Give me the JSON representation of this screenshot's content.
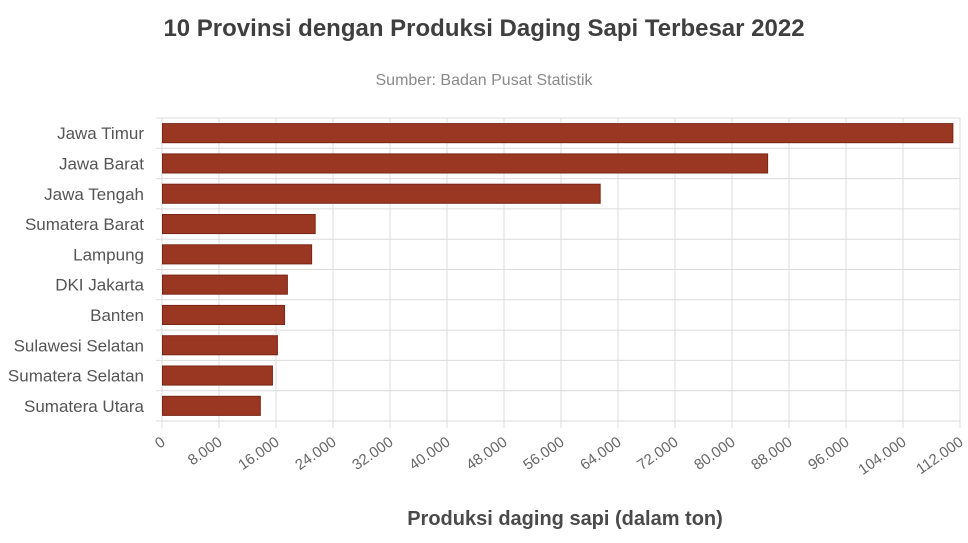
{
  "chart_data": {
    "type": "bar",
    "orientation": "horizontal",
    "title": "10 Provinsi dengan Produksi Daging Sapi Terbesar 2022",
    "subtitle": "Sumber: Badan Pusat Statistik",
    "xlabel": "Produksi daging sapi (dalam ton)",
    "ylabel": "",
    "categories": [
      "Jawa Timur",
      "Jawa Barat",
      "Jawa Tengah",
      "Sumatera Barat",
      "Lampung",
      "DKI Jakarta",
      "Banten",
      "Sulawesi Selatan",
      "Sumatera Selatan",
      "Sumatera Utara"
    ],
    "values": [
      111000,
      85000,
      61500,
      21500,
      21000,
      17600,
      17200,
      16200,
      15500,
      13800
    ],
    "xlim": [
      0,
      112000
    ],
    "xticks": [
      0,
      8000,
      16000,
      24000,
      32000,
      40000,
      48000,
      56000,
      64000,
      72000,
      80000,
      88000,
      96000,
      104000,
      112000
    ],
    "xtick_labels": [
      "0",
      "8.000",
      "16.000",
      "24.000",
      "32.000",
      "40.000",
      "48.000",
      "56.000",
      "64.000",
      "72.000",
      "80.000",
      "88.000",
      "96.000",
      "104.000",
      "112.000"
    ],
    "grid": true,
    "bar_color": "#9a3722",
    "bar_border_color": "#7a2616"
  }
}
